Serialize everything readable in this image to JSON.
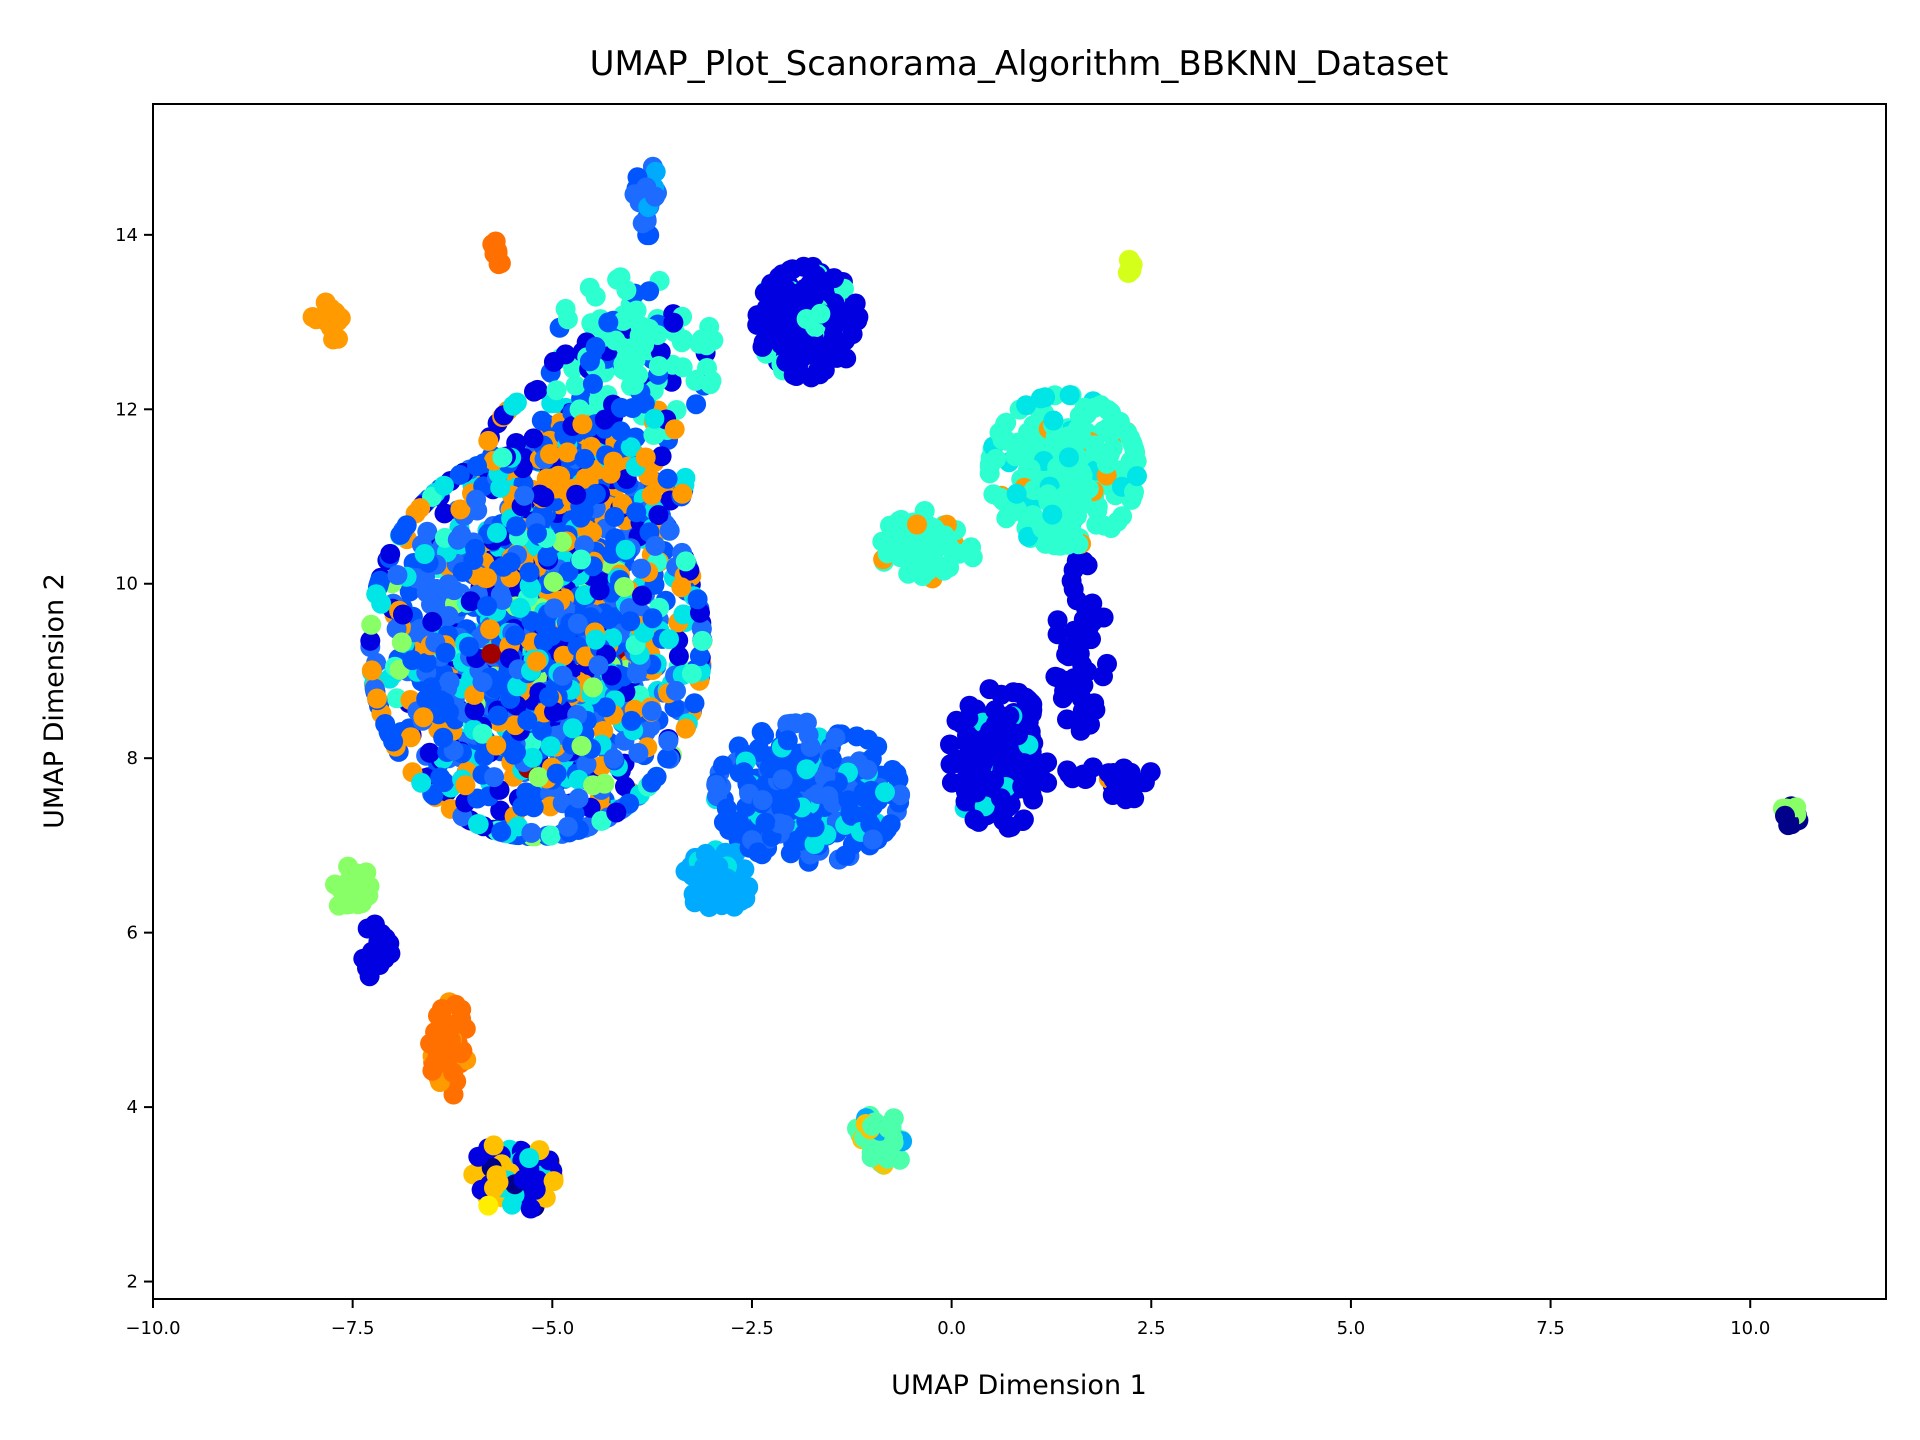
{
  "chart_data": {
    "type": "scatter",
    "title": "UMAP_Plot_Scanorama_Algorithm_BBKNN_Dataset",
    "xlabel": "UMAP Dimension 1",
    "ylabel": "UMAP Dimension 2",
    "xlim": [
      -10.0,
      11.7
    ],
    "ylim": [
      1.8,
      15.5
    ],
    "xticks": [
      -10.0,
      -7.5,
      -5.0,
      -2.5,
      0.0,
      2.5,
      5.0,
      7.5,
      10.0
    ],
    "xtick_labels": [
      "−10.0",
      "−7.5",
      "−5.0",
      "−2.5",
      "0.0",
      "2.5",
      "5.0",
      "7.5",
      "10.0"
    ],
    "yticks": [
      2,
      4,
      6,
      8,
      10,
      12,
      14
    ],
    "ytick_labels": [
      "2",
      "4",
      "6",
      "8",
      "10",
      "12",
      "14"
    ],
    "grid": false,
    "legend": "none",
    "colormap": "jet",
    "palette": [
      "#00008b",
      "#0000e0",
      "#0055ff",
      "#1e6bff",
      "#00aaff",
      "#00e5e5",
      "#2dffd0",
      "#4cffaa",
      "#88ff66",
      "#d4ff1a",
      "#ffee00",
      "#ffc000",
      "#ff9a00",
      "#ff7000",
      "#a00000"
    ],
    "clusters": [
      {
        "center": [
          -5.2,
          9.3
        ],
        "spread": [
          1.8,
          1.9
        ],
        "count": 1400,
        "colors": {
          "#0055ff": 4,
          "#1e6bff": 3,
          "#0000e0": 2,
          "#ff9a00": 2,
          "#00e5e5": 2,
          "#2dffd0": 0.5,
          "#88ff66": 0.4,
          "#a00000": 0.05
        }
      },
      {
        "center": [
          -4.6,
          11.3
        ],
        "spread": [
          1.1,
          0.9
        ],
        "count": 220,
        "colors": {
          "#ff9a00": 3,
          "#0055ff": 2,
          "#0000e0": 1.5,
          "#00e5e5": 1
        }
      },
      {
        "center": [
          -4.0,
          12.6
        ],
        "spread": [
          0.9,
          0.8
        ],
        "count": 120,
        "colors": {
          "#2dffd0": 3,
          "#0000e0": 1,
          "#0055ff": 1
        }
      },
      {
        "center": [
          -3.8,
          14.4
        ],
        "spread": [
          0.15,
          0.35
        ],
        "count": 25,
        "colors": {
          "#0055ff": 2,
          "#1e6bff": 2,
          "#00aaff": 1
        }
      },
      {
        "center": [
          -1.8,
          13.0
        ],
        "spread": [
          0.55,
          0.55
        ],
        "count": 200,
        "colors": {
          "#0000e0": 6,
          "#2dffd0": 1
        }
      },
      {
        "center": [
          -1.8,
          7.6
        ],
        "spread": [
          1.0,
          0.7
        ],
        "count": 300,
        "colors": {
          "#0055ff": 4,
          "#1e6bff": 2,
          "#00e5e5": 1
        }
      },
      {
        "center": [
          -2.9,
          6.6
        ],
        "spread": [
          0.4,
          0.3
        ],
        "count": 90,
        "colors": {
          "#00aaff": 6,
          "#00e5e5": 1
        }
      },
      {
        "center": [
          1.4,
          11.3
        ],
        "spread": [
          0.8,
          0.75
        ],
        "count": 260,
        "colors": {
          "#2dffd0": 8,
          "#00e5e5": 1,
          "#ff9a00": 0.5
        }
      },
      {
        "center": [
          -0.3,
          10.4
        ],
        "spread": [
          0.5,
          0.4
        ],
        "count": 60,
        "colors": {
          "#2dffd0": 4,
          "#ff9a00": 0.5
        }
      },
      {
        "center": [
          0.6,
          8.0
        ],
        "spread": [
          0.55,
          0.7
        ],
        "count": 170,
        "colors": {
          "#0000e0": 6,
          "#00e5e5": 0.5
        }
      },
      {
        "center": [
          1.6,
          9.0
        ],
        "spread": [
          0.3,
          1.1
        ],
        "count": 60,
        "colors": {
          "#0000e0": 6
        }
      },
      {
        "center": [
          2.2,
          7.7
        ],
        "spread": [
          0.3,
          0.3
        ],
        "count": 25,
        "colors": {
          "#0000e0": 5,
          "#ff9a00": 0.5
        }
      },
      {
        "center": [
          -7.5,
          6.5
        ],
        "spread": [
          0.2,
          0.25
        ],
        "count": 40,
        "colors": {
          "#88ff66": 6
        }
      },
      {
        "center": [
          -7.2,
          5.8
        ],
        "spread": [
          0.15,
          0.3
        ],
        "count": 25,
        "colors": {
          "#0000e0": 6
        }
      },
      {
        "center": [
          -6.3,
          4.7
        ],
        "spread": [
          0.2,
          0.5
        ],
        "count": 50,
        "colors": {
          "#ff7000": 6,
          "#ff9a00": 1
        }
      },
      {
        "center": [
          -5.5,
          3.2
        ],
        "spread": [
          0.45,
          0.35
        ],
        "count": 130,
        "colors": {
          "#0000e0": 3,
          "#ffc000": 3,
          "#00e5e5": 1,
          "#00008b": 1,
          "#ffee00": 0.5
        }
      },
      {
        "center": [
          -7.8,
          13.0
        ],
        "spread": [
          0.18,
          0.2
        ],
        "count": 14,
        "colors": {
          "#ff9a00": 6
        }
      },
      {
        "center": [
          -5.7,
          13.8
        ],
        "spread": [
          0.12,
          0.12
        ],
        "count": 8,
        "colors": {
          "#ff7000": 6
        }
      },
      {
        "center": [
          -0.9,
          3.6
        ],
        "spread": [
          0.28,
          0.28
        ],
        "count": 50,
        "colors": {
          "#4cffaa": 6,
          "#ffc000": 1,
          "#00aaff": 0.5
        }
      },
      {
        "center": [
          2.2,
          13.6
        ],
        "spread": [
          0.1,
          0.1
        ],
        "count": 8,
        "colors": {
          "#d4ff1a": 5,
          "#ffc000": 1
        }
      },
      {
        "center": [
          10.5,
          7.35
        ],
        "spread": [
          0.1,
          0.12
        ],
        "count": 14,
        "colors": {
          "#88ff66": 4,
          "#00008b": 3,
          "#0000e0": 1
        }
      }
    ]
  }
}
